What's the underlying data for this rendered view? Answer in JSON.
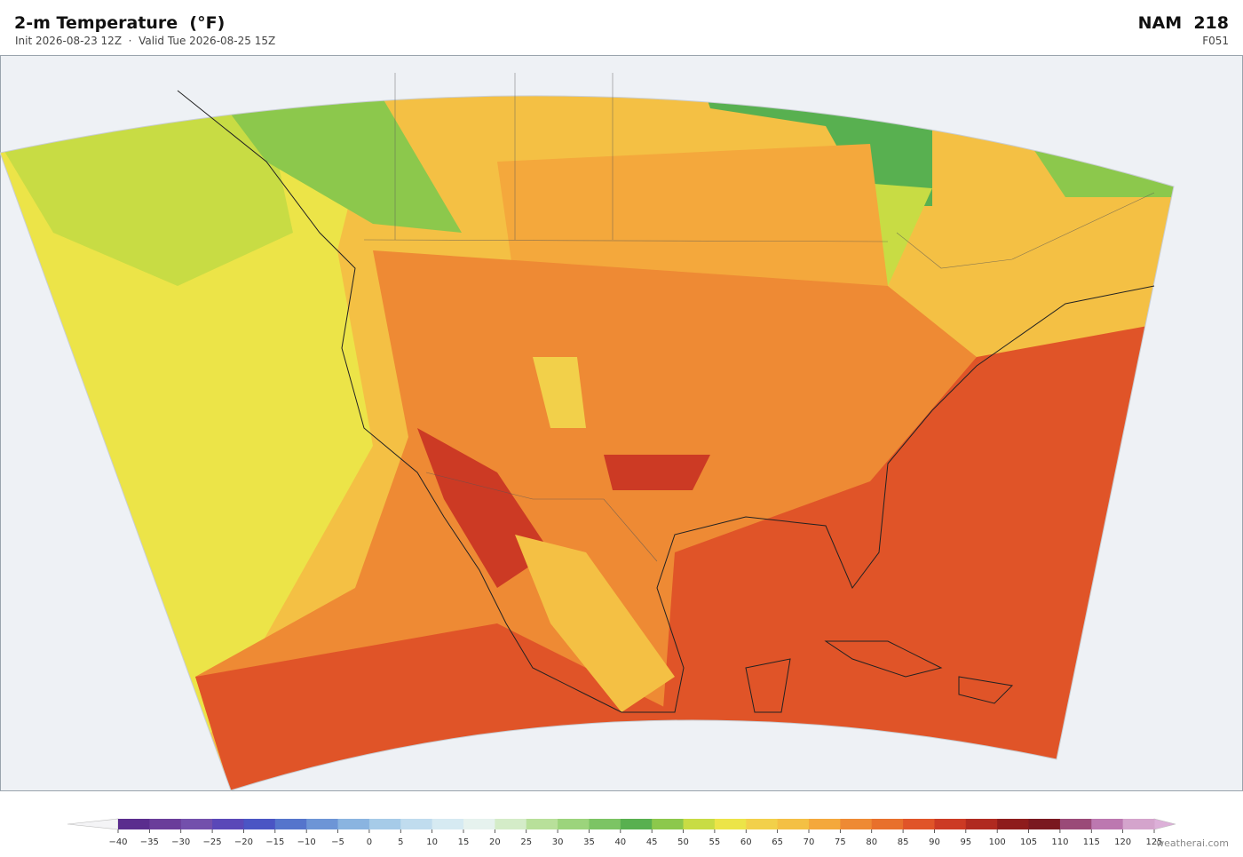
{
  "header": {
    "title": "2-m Temperature  (°F)",
    "subtitle": "Init 2026-08-23 12Z  ·  Valid Tue 2026-08-25 15Z",
    "model": "NAM  218",
    "forecast_hour": "F051"
  },
  "colorbar": {
    "ticks": [
      {
        "value": -40,
        "label": "−40"
      },
      {
        "value": -35,
        "label": "−35"
      },
      {
        "value": -30,
        "label": "−30"
      },
      {
        "value": -25,
        "label": "−25"
      },
      {
        "value": -20,
        "label": "−20"
      },
      {
        "value": -15,
        "label": "−15"
      },
      {
        "value": -10,
        "label": "−10"
      },
      {
        "value": -5,
        "label": "−5"
      },
      0,
      5,
      10,
      15,
      20,
      25,
      30,
      35,
      40,
      45,
      50,
      55,
      60,
      65,
      70,
      75,
      80,
      85,
      90,
      95,
      100,
      105,
      110,
      115,
      120,
      125
    ],
    "colors": [
      "#5b2d8e",
      "#6a3d9a",
      "#7350ac",
      "#5a48b8",
      "#4a55c4",
      "#5575cc",
      "#6d95d6",
      "#8ab4e0",
      "#a6cbe8",
      "#c0dcee",
      "#d6eaf2",
      "#e6f2ee",
      "#d4ecc8",
      "#b8e09a",
      "#9cd47c",
      "#7cc464",
      "#58b050",
      "#8cc84c",
      "#c8dc44",
      "#ece448",
      "#f2d04a",
      "#f4c044",
      "#f4a83c",
      "#ee8a34",
      "#e8702c",
      "#e05428",
      "#cc3a24",
      "#b02a20",
      "#8e1c1c",
      "#7a1820",
      "#9a4a78",
      "#bc78b0",
      "#d4a4cc"
    ]
  },
  "footer": {
    "watermark": "weatherai.com"
  }
}
